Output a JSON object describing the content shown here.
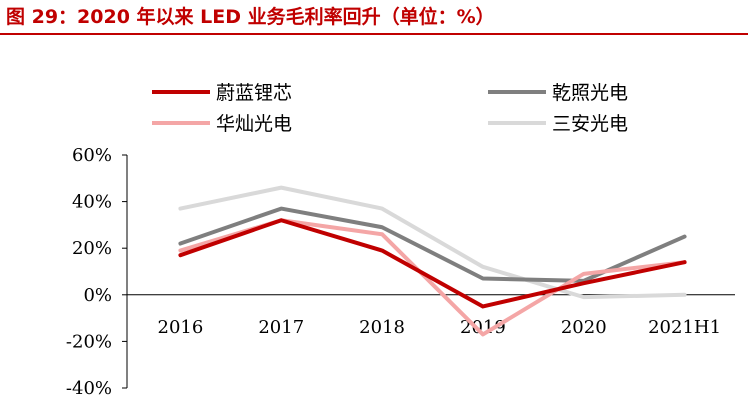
{
  "figure": {
    "title": "图 29：2020 年以来 LED 业务毛利率回升（单位：%）",
    "title_color": "#C00000"
  },
  "chart_data": {
    "type": "line",
    "title": "",
    "xlabel": "",
    "ylabel": "",
    "categories": [
      "2016",
      "2017",
      "2018",
      "2019",
      "2020",
      "2021H1"
    ],
    "y_ticks": [
      -40,
      -20,
      0,
      20,
      40,
      60
    ],
    "y_tick_labels": [
      "-40%",
      "-20%",
      "0%",
      "20%",
      "40%",
      "60%"
    ],
    "ylim": [
      -40,
      60
    ],
    "grid": false,
    "legend_position": "top",
    "series": [
      {
        "name": "蔚蓝锂芯",
        "color": "#C00000",
        "values": [
          17,
          32,
          19,
          -5,
          5,
          14
        ]
      },
      {
        "name": "乾照光电",
        "color": "#7F7F7F",
        "values": [
          22,
          37,
          29,
          7,
          6,
          25
        ]
      },
      {
        "name": "华灿光电",
        "color": "#F4A6A6",
        "values": [
          19,
          32,
          26,
          -17,
          9,
          14
        ]
      },
      {
        "name": "三安光电",
        "color": "#D9D9D9",
        "values": [
          37,
          46,
          37,
          12,
          -1,
          0
        ]
      }
    ]
  }
}
